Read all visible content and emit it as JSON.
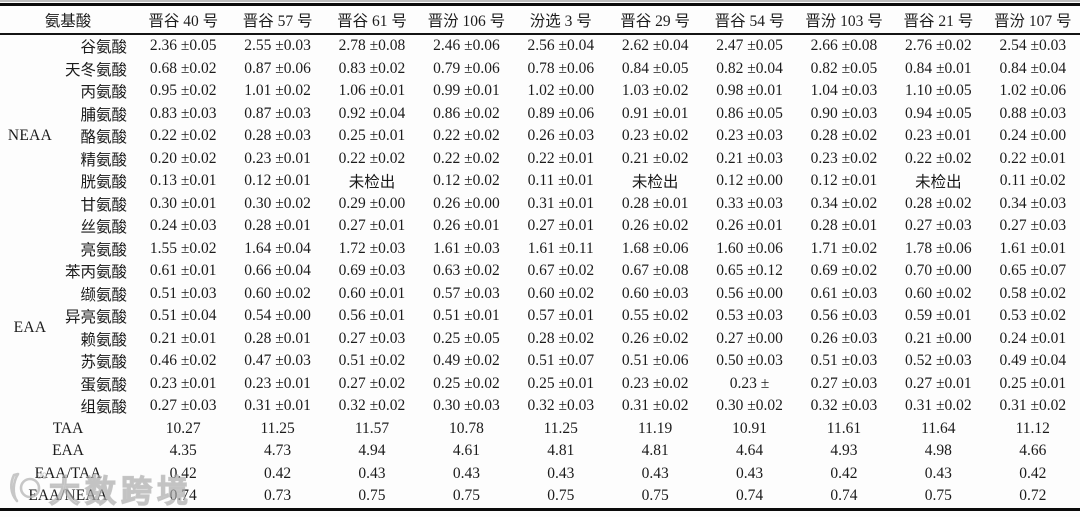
{
  "table": {
    "header": {
      "amino_acid_label": "氨基酸",
      "varieties": [
        "晋谷 40 号",
        "晋谷 57 号",
        "晋谷 61 号",
        "晋汾 106 号",
        "汾选 3 号",
        "晋谷 29 号",
        "晋谷 54 号",
        "晋汾 103 号",
        "晋谷 21 号",
        "晋汾 107 号"
      ]
    },
    "groups": [
      {
        "label": "NEAA",
        "rows": [
          {
            "name": "谷氨酸",
            "values": [
              "2.36 ±0.05",
              "2.55 ±0.03",
              "2.78 ±0.08",
              "2.46 ±0.06",
              "2.56 ±0.04",
              "2.62 ±0.04",
              "2.47 ±0.05",
              "2.66 ±0.08",
              "2.76 ±0.02",
              "2.54 ±0.03"
            ]
          },
          {
            "name": "天冬氨酸",
            "values": [
              "0.68 ±0.02",
              "0.87 ±0.06",
              "0.83 ±0.02",
              "0.79 ±0.06",
              "0.78 ±0.06",
              "0.84 ±0.05",
              "0.82 ±0.04",
              "0.82 ±0.05",
              "0.84 ±0.01",
              "0.84 ±0.04"
            ]
          },
          {
            "name": "丙氨酸",
            "values": [
              "0.95 ±0.02",
              "1.01 ±0.02",
              "1.06 ±0.01",
              "0.99 ±0.01",
              "1.02 ±0.00",
              "1.03 ±0.02",
              "0.98 ±0.01",
              "1.04 ±0.03",
              "1.10 ±0.05",
              "1.02 ±0.06"
            ]
          },
          {
            "name": "脯氨酸",
            "values": [
              "0.83 ±0.03",
              "0.87 ±0.03",
              "0.92 ±0.04",
              "0.86 ±0.02",
              "0.89 ±0.06",
              "0.91 ±0.01",
              "0.86 ±0.05",
              "0.90 ±0.03",
              "0.94 ±0.05",
              "0.88 ±0.03"
            ]
          },
          {
            "name": "酪氨酸",
            "values": [
              "0.22 ±0.02",
              "0.28 ±0.03",
              "0.25 ±0.01",
              "0.22 ±0.02",
              "0.26 ±0.03",
              "0.23 ±0.02",
              "0.23 ±0.03",
              "0.28 ±0.02",
              "0.23 ±0.01",
              "0.24 ±0.00"
            ]
          },
          {
            "name": "精氨酸",
            "values": [
              "0.20 ±0.02",
              "0.23 ±0.01",
              "0.22 ±0.02",
              "0.22 ±0.02",
              "0.22 ±0.01",
              "0.21 ±0.02",
              "0.21 ±0.03",
              "0.23 ±0.02",
              "0.22 ±0.02",
              "0.22 ±0.01"
            ]
          },
          {
            "name": "胱氨酸",
            "values": [
              "0.13 ±0.01",
              "0.12 ±0.01",
              "未检出",
              "0.12 ±0.02",
              "0.11 ±0.01",
              "未检出",
              "0.12 ±0.00",
              "0.12 ±0.01",
              "未检出",
              "0.11 ±0.02"
            ]
          },
          {
            "name": "甘氨酸",
            "values": [
              "0.30 ±0.01",
              "0.30 ±0.02",
              "0.29 ±0.00",
              "0.26 ±0.00",
              "0.31 ±0.01",
              "0.28 ±0.01",
              "0.33 ±0.03",
              "0.34 ±0.02",
              "0.28 ±0.02",
              "0.34 ±0.03"
            ]
          },
          {
            "name": "丝氨酸",
            "values": [
              "0.24 ±0.03",
              "0.28 ±0.01",
              "0.27 ±0.01",
              "0.26 ±0.01",
              "0.27 ±0.01",
              "0.26 ±0.02",
              "0.26 ±0.01",
              "0.28 ±0.01",
              "0.27 ±0.03",
              "0.27 ±0.03"
            ]
          }
        ]
      },
      {
        "label": "EAA",
        "rows": [
          {
            "name": "亮氨酸",
            "values": [
              "1.55 ±0.02",
              "1.64 ±0.04",
              "1.72 ±0.03",
              "1.61 ±0.03",
              "1.61 ±0.11",
              "1.68 ±0.06",
              "1.60 ±0.06",
              "1.71 ±0.02",
              "1.78 ±0.06",
              "1.61 ±0.01"
            ]
          },
          {
            "name": "苯丙氨酸",
            "values": [
              "0.61 ±0.01",
              "0.66 ±0.04",
              "0.69 ±0.03",
              "0.63 ±0.02",
              "0.67 ±0.02",
              "0.67 ±0.08",
              "0.65 ±0.12",
              "0.69 ±0.02",
              "0.70 ±0.00",
              "0.65 ±0.07"
            ]
          },
          {
            "name": "缬氨酸",
            "values": [
              "0.51 ±0.03",
              "0.60 ±0.02",
              "0.60 ±0.01",
              "0.57 ±0.03",
              "0.60 ±0.02",
              "0.60 ±0.03",
              "0.56 ±0.00",
              "0.61 ±0.03",
              "0.60 ±0.02",
              "0.58 ±0.02"
            ]
          },
          {
            "name": "异亮氨酸",
            "values": [
              "0.51 ±0.04",
              "0.54 ±0.00",
              "0.56 ±0.01",
              "0.51 ±0.01",
              "0.57 ±0.01",
              "0.55 ±0.02",
              "0.53 ±0.03",
              "0.56 ±0.03",
              "0.59 ±0.01",
              "0.53 ±0.02"
            ]
          },
          {
            "name": "赖氨酸",
            "values": [
              "0.21 ±0.01",
              "0.28 ±0.01",
              "0.27 ±0.03",
              "0.25 ±0.05",
              "0.28 ±0.02",
              "0.26 ±0.02",
              "0.27 ±0.00",
              "0.26 ±0.03",
              "0.21 ±0.00",
              "0.24 ±0.01"
            ]
          },
          {
            "name": "苏氨酸",
            "values": [
              "0.46 ±0.02",
              "0.47 ±0.03",
              "0.51 ±0.02",
              "0.49 ±0.02",
              "0.51 ±0.07",
              "0.51 ±0.06",
              "0.50 ±0.03",
              "0.51 ±0.03",
              "0.52 ±0.03",
              "0.49 ±0.04"
            ]
          },
          {
            "name": "蛋氨酸",
            "values": [
              "0.23 ±0.01",
              "0.23 ±0.01",
              "0.27 ±0.02",
              "0.25 ±0.02",
              "0.25 ±0.01",
              "0.23 ±0.02",
              "0.23 ±",
              "0.27 ±0.03",
              "0.27 ±0.01",
              "0.25 ±0.01"
            ]
          },
          {
            "name": "组氨酸",
            "values": [
              "0.27 ±0.03",
              "0.31 ±0.01",
              "0.32 ±0.02",
              "0.30 ±0.03",
              "0.32 ±0.03",
              "0.31 ±0.02",
              "0.30 ±0.02",
              "0.32 ±0.03",
              "0.31 ±0.02",
              "0.31 ±0.02"
            ]
          }
        ]
      }
    ],
    "summary_rows": [
      {
        "name": "TAA",
        "values": [
          "10.27",
          "11.25",
          "11.57",
          "10.78",
          "11.25",
          "11.19",
          "10.91",
          "11.61",
          "11.64",
          "11.12"
        ]
      },
      {
        "name": "EAA",
        "values": [
          "4.35",
          "4.73",
          "4.94",
          "4.61",
          "4.81",
          "4.81",
          "4.64",
          "4.93",
          "4.98",
          "4.66"
        ]
      },
      {
        "name": "EAA/TAA",
        "values": [
          "0.42",
          "0.42",
          "0.43",
          "0.43",
          "0.43",
          "0.43",
          "0.43",
          "0.42",
          "0.43",
          "0.42"
        ]
      },
      {
        "name": "EAA/NEAA",
        "values": [
          "0.74",
          "0.73",
          "0.75",
          "0.75",
          "0.75",
          "0.75",
          "0.74",
          "0.74",
          "0.75",
          "0.72"
        ]
      }
    ],
    "not_detected_text": "未检出"
  },
  "watermark": {
    "text": "大数跨境"
  },
  "colors": {
    "text": "#1b1b1b",
    "border": "#0b0b0b",
    "watermark": "#bcbcbc",
    "background": "#fdfdfd"
  }
}
